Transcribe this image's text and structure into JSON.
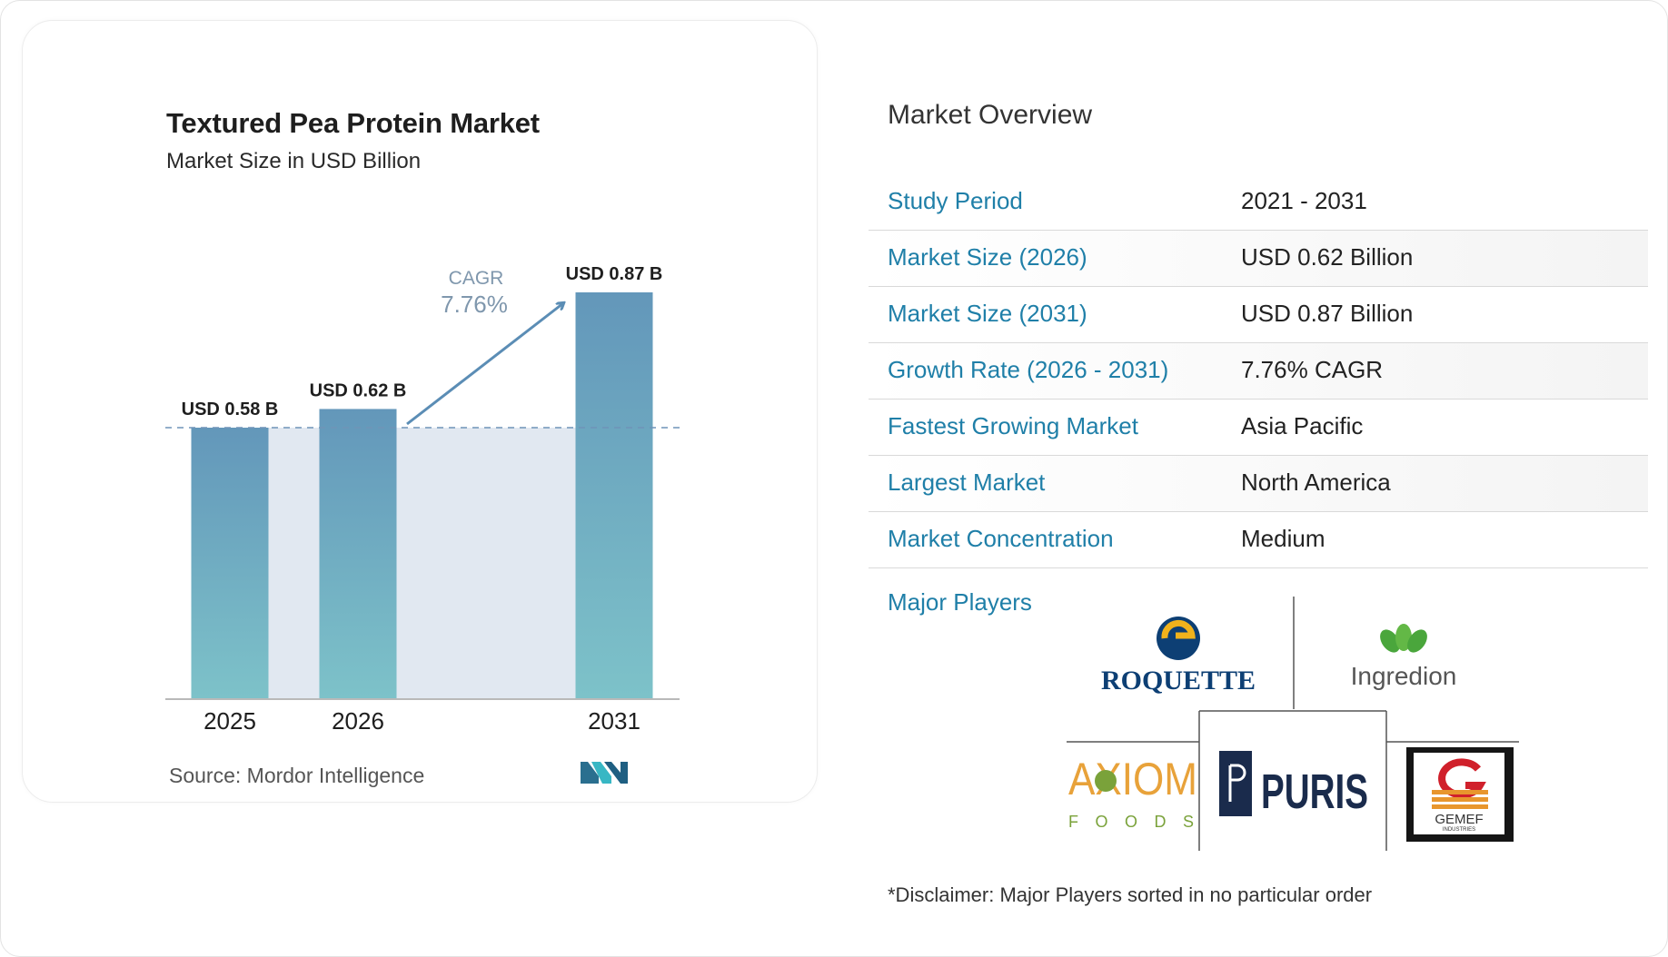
{
  "chart": {
    "title": "Textured Pea Protein Market",
    "subtitle": "Market Size in USD Billion",
    "source": "Source: Mordor Intelligence",
    "cagr_label": "CAGR",
    "cagr_value": "7.76%"
  },
  "chart_data": {
    "type": "bar",
    "categories": [
      "2025",
      "2026",
      "2031"
    ],
    "values": [
      0.58,
      0.62,
      0.87
    ],
    "value_labels": [
      "USD 0.58 B",
      "USD 0.62 B",
      "USD 0.87 B"
    ],
    "title": "Textured Pea Protein Market",
    "subtitle": "Market Size in USD Billion",
    "ylim": [
      0,
      0.87
    ],
    "grid": false,
    "legend": "none",
    "colors": {
      "bar_top": "#6397ba",
      "bar_bottom": "#7dc2c9",
      "band": "#e1e8f1",
      "arrow": "#5b8db5",
      "cagr": "#7f97ad"
    }
  },
  "overview": {
    "title": "Market Overview",
    "rows": [
      {
        "label": "Study Period",
        "value": "2021 - 2031"
      },
      {
        "label": "Market Size (2026)",
        "value": "USD 0.62 Billion"
      },
      {
        "label": "Market Size (2031)",
        "value": "USD 0.87 Billion"
      },
      {
        "label": "Growth Rate (2026 - 2031)",
        "value": "7.76% CAGR"
      },
      {
        "label": "Fastest Growing Market",
        "value": "Asia Pacific"
      },
      {
        "label": "Largest Market",
        "value": "North America"
      },
      {
        "label": "Market Concentration",
        "value": "Medium"
      }
    ],
    "players_label": "Major Players",
    "players": [
      "ROQUETTE",
      "Ingredion",
      "AXIOM FOODS",
      "PURIS",
      "GEMEF INDUSTRIES"
    ],
    "disclaimer": "*Disclaimer: Major Players sorted in no particular order"
  },
  "colors": {
    "accent": "#1f7fa8"
  }
}
